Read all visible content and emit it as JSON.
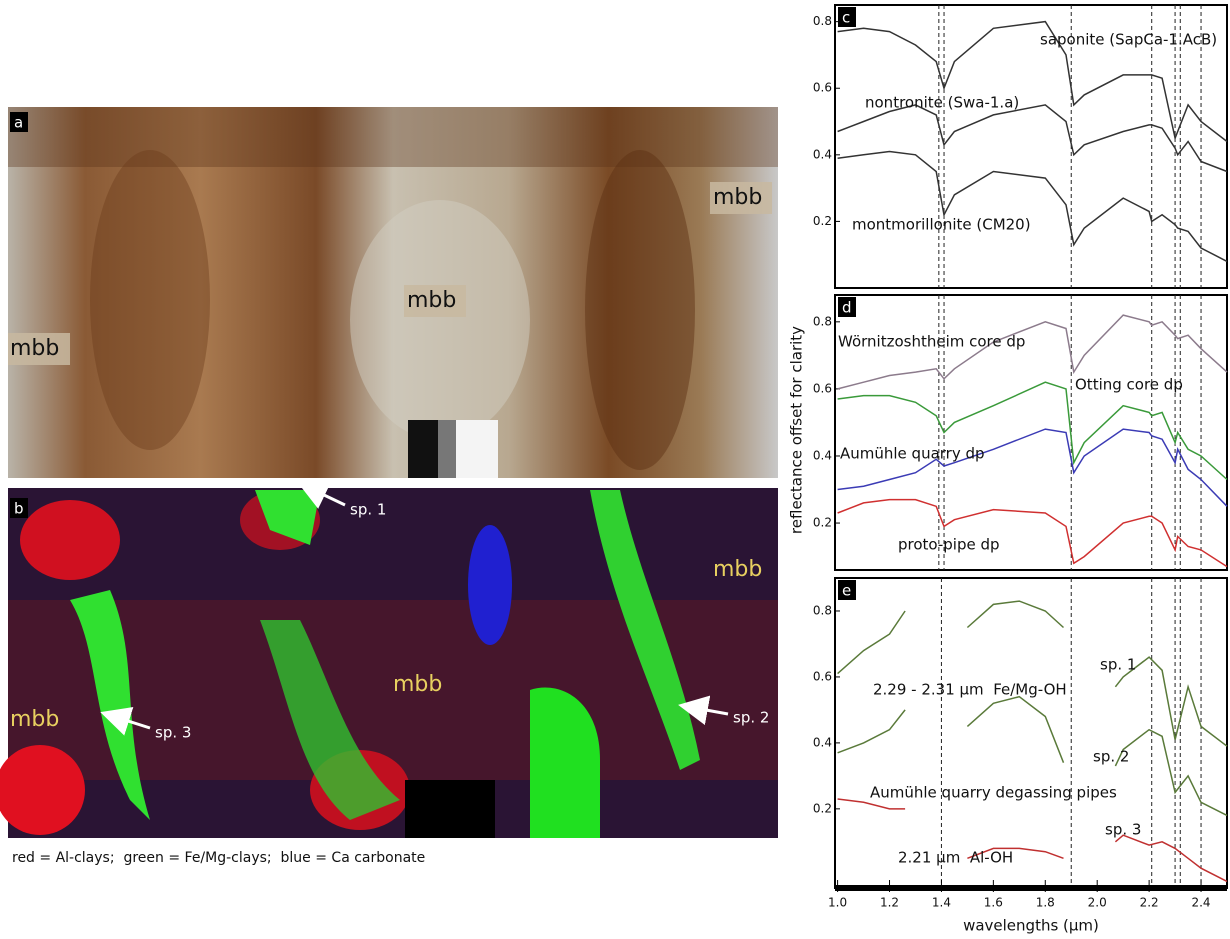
{
  "photo_a": {
    "label": "a",
    "annotations": [
      "mbb",
      "mbb",
      "mbb"
    ]
  },
  "photo_b": {
    "label": "b",
    "annotations": [
      "sp. 1",
      "sp. 3",
      "sp. 2",
      "mbb",
      "mbb",
      "mbb"
    ],
    "caption": "red = Al-clays;  green = Fe/Mg-clays;  blue = Ca carbonate"
  },
  "y_label": "reflectance offset for clarity",
  "chart_data": [
    {
      "type": "line",
      "panel_label": "c",
      "x": [
        1.0,
        1.1,
        1.2,
        1.3,
        1.38,
        1.41,
        1.45,
        1.6,
        1.8,
        1.88,
        1.91,
        1.95,
        2.1,
        2.2,
        2.21,
        2.25,
        2.3,
        2.31,
        2.35,
        2.4,
        2.5
      ],
      "xlim": [
        0.99,
        2.5
      ],
      "ylim": [
        0,
        0.85
      ],
      "yticks": [
        0.2,
        0.4,
        0.6,
        0.8
      ],
      "reference_lines": [
        1.39,
        1.41,
        1.9,
        2.21,
        2.3,
        2.32,
        2.4
      ],
      "series": [
        {
          "name": "saponite (SapCa-1.AcB)",
          "color": "#333333",
          "values": [
            0.77,
            0.78,
            0.77,
            0.73,
            0.68,
            0.6,
            0.68,
            0.78,
            0.8,
            0.7,
            0.55,
            0.58,
            0.64,
            0.64,
            0.64,
            0.63,
            0.45,
            0.47,
            0.55,
            0.5,
            0.44
          ]
        },
        {
          "name": "nontronite (Swa-1.a)",
          "color": "#333333",
          "values": [
            0.47,
            0.5,
            0.53,
            0.55,
            0.52,
            0.43,
            0.47,
            0.52,
            0.55,
            0.5,
            0.4,
            0.43,
            0.47,
            0.49,
            0.49,
            0.48,
            0.42,
            0.4,
            0.44,
            0.38,
            0.35
          ]
        },
        {
          "name": "montmorillonite (CM20)",
          "color": "#333333",
          "values": [
            0.39,
            0.4,
            0.41,
            0.4,
            0.35,
            0.22,
            0.28,
            0.35,
            0.33,
            0.25,
            0.13,
            0.18,
            0.27,
            0.23,
            0.2,
            0.22,
            0.19,
            0.18,
            0.17,
            0.12,
            0.08
          ]
        }
      ]
    },
    {
      "type": "line",
      "panel_label": "d",
      "x": [
        1.0,
        1.1,
        1.2,
        1.3,
        1.38,
        1.41,
        1.45,
        1.6,
        1.8,
        1.88,
        1.91,
        1.95,
        2.1,
        2.2,
        2.21,
        2.25,
        2.3,
        2.31,
        2.35,
        2.4,
        2.5
      ],
      "xlim": [
        0.99,
        2.5
      ],
      "ylim": [
        0.06,
        0.88
      ],
      "yticks": [
        0.2,
        0.4,
        0.6,
        0.8
      ],
      "reference_lines": [
        1.39,
        1.41,
        1.9,
        2.21,
        2.3,
        2.32,
        2.4
      ],
      "series": [
        {
          "name": "Wörnitzoshtheim core dp",
          "color": "#8c7b8c",
          "values": [
            0.6,
            0.62,
            0.64,
            0.65,
            0.66,
            0.63,
            0.66,
            0.74,
            0.8,
            0.78,
            0.65,
            0.7,
            0.82,
            0.8,
            0.79,
            0.8,
            0.76,
            0.75,
            0.76,
            0.72,
            0.65
          ]
        },
        {
          "name": "Otting core dp",
          "color": "#3a9a3a",
          "values": [
            0.57,
            0.58,
            0.58,
            0.56,
            0.52,
            0.47,
            0.5,
            0.55,
            0.62,
            0.6,
            0.38,
            0.44,
            0.55,
            0.53,
            0.52,
            0.53,
            0.44,
            0.47,
            0.42,
            0.4,
            0.33
          ]
        },
        {
          "name": "Aumühle quarry dp",
          "color": "#3b3bb5",
          "values": [
            0.3,
            0.31,
            0.33,
            0.35,
            0.39,
            0.37,
            0.38,
            0.42,
            0.48,
            0.47,
            0.35,
            0.4,
            0.48,
            0.47,
            0.46,
            0.45,
            0.38,
            0.42,
            0.36,
            0.33,
            0.25
          ]
        },
        {
          "name": "proto-pipe dp",
          "color": "#d03030",
          "values": [
            0.23,
            0.26,
            0.27,
            0.27,
            0.25,
            0.19,
            0.21,
            0.24,
            0.23,
            0.19,
            0.08,
            0.1,
            0.2,
            0.22,
            0.22,
            0.2,
            0.12,
            0.16,
            0.13,
            0.12,
            0.07
          ]
        }
      ]
    },
    {
      "type": "line",
      "panel_label": "e",
      "x": [
        1.0,
        1.1,
        1.2,
        1.26,
        1.27,
        1.5,
        1.6,
        1.7,
        1.8,
        1.87,
        1.88,
        2.07,
        2.1,
        2.2,
        2.25,
        2.3,
        2.35,
        2.4,
        2.5
      ],
      "xlim": [
        0.99,
        2.5
      ],
      "ylim": [
        -0.04,
        0.9
      ],
      "yticks": [
        0.2,
        0.4,
        0.6,
        0.8
      ],
      "xticks": [
        {
          "value": 1,
          "label": "1.0"
        },
        1.2,
        1.4,
        1.6,
        1.8,
        {
          "value": 2,
          "label": "2.0"
        },
        2.2,
        2.4
      ],
      "x_label": "wavelengths (μm)",
      "reference_lines": [
        1.4,
        1.9,
        2.21,
        2.3,
        2.32,
        2.4
      ],
      "annotations": [
        "sp. 1",
        "2.29 - 2.31 μm  Fe/Mg-OH",
        "sp. 2",
        "Aumühle quarry degassing pipes",
        "sp. 3",
        "2.21 μm  Al-OH"
      ],
      "series": [
        {
          "color": "#5a7a3a",
          "values": [
            0.61,
            0.68,
            0.73,
            0.8,
            null,
            0.75,
            0.82,
            0.83,
            0.8,
            0.75,
            null,
            0.57,
            0.6,
            0.66,
            0.62,
            0.41,
            0.57,
            0.45,
            0.39
          ]
        },
        {
          "color": "#5a7a3a",
          "values": [
            0.37,
            0.4,
            0.44,
            0.5,
            null,
            0.45,
            0.52,
            0.54,
            0.48,
            0.34,
            null,
            0.33,
            0.38,
            0.44,
            0.42,
            0.25,
            0.3,
            0.22,
            0.18
          ]
        },
        {
          "color": "#c03030",
          "values": [
            0.23,
            0.22,
            0.2,
            0.2,
            null,
            0.05,
            0.08,
            0.08,
            0.07,
            0.05,
            null,
            0.1,
            0.12,
            0.09,
            0.1,
            0.08,
            0.05,
            0.02,
            -0.02
          ]
        }
      ]
    }
  ]
}
